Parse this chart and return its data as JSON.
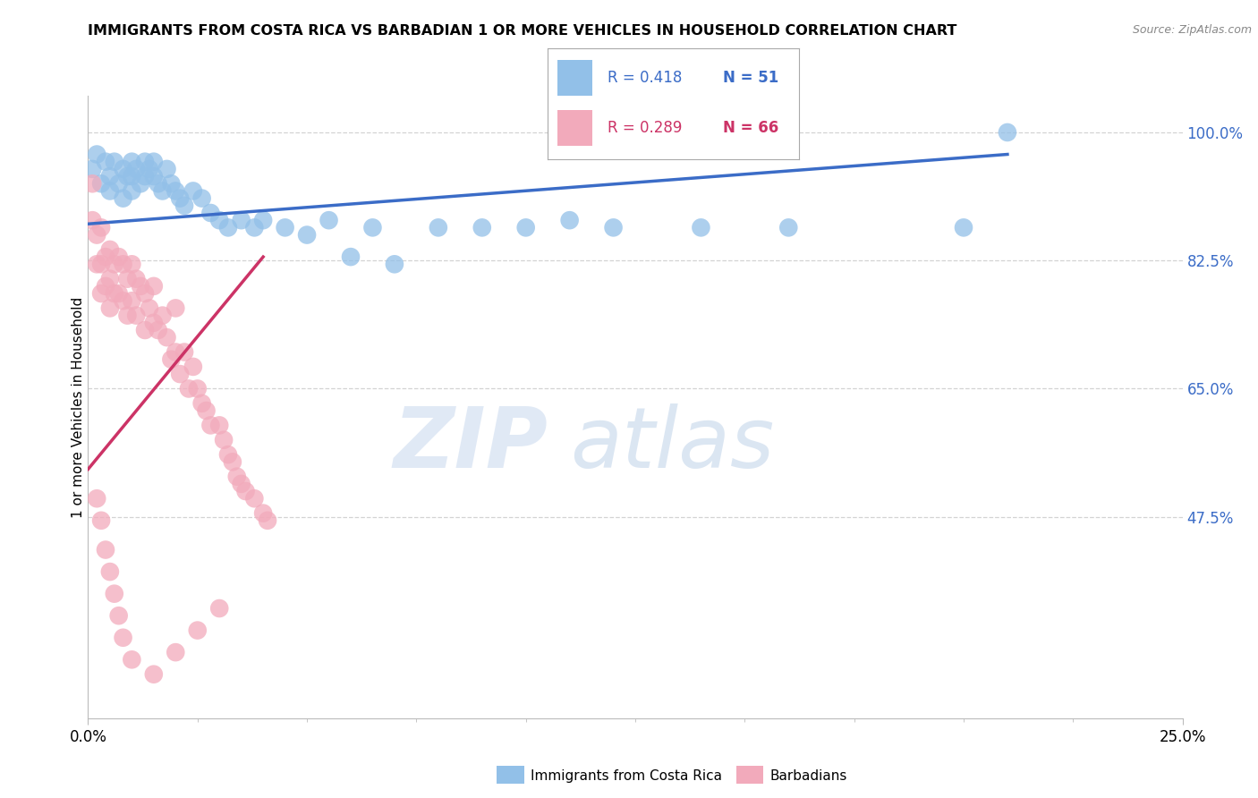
{
  "title": "IMMIGRANTS FROM COSTA RICA VS BARBADIAN 1 OR MORE VEHICLES IN HOUSEHOLD CORRELATION CHART",
  "source": "Source: ZipAtlas.com",
  "ylabel": "1 or more Vehicles in Household",
  "ytick_labels": [
    "100.0%",
    "82.5%",
    "65.0%",
    "47.5%"
  ],
  "ytick_values": [
    1.0,
    0.825,
    0.65,
    0.475
  ],
  "legend_r1": "R = 0.418",
  "legend_n1": "N = 51",
  "legend_r2": "R = 0.289",
  "legend_n2": "N = 66",
  "series1_label": "Immigrants from Costa Rica",
  "series2_label": "Barbadians",
  "color_blue": "#92C0E8",
  "color_pink": "#F2AABB",
  "trendline_blue": "#3B6CC7",
  "trendline_pink": "#CC3366",
  "background": "#FFFFFF",
  "grid_color": "#C8C8C8",
  "blue_x": [
    0.001,
    0.002,
    0.003,
    0.004,
    0.005,
    0.005,
    0.006,
    0.007,
    0.008,
    0.008,
    0.009,
    0.01,
    0.01,
    0.01,
    0.011,
    0.012,
    0.013,
    0.013,
    0.014,
    0.015,
    0.015,
    0.016,
    0.017,
    0.018,
    0.019,
    0.02,
    0.021,
    0.022,
    0.024,
    0.026,
    0.028,
    0.03,
    0.032,
    0.035,
    0.038,
    0.04,
    0.045,
    0.05,
    0.055,
    0.06,
    0.065,
    0.07,
    0.08,
    0.09,
    0.1,
    0.11,
    0.12,
    0.14,
    0.16,
    0.2,
    0.21
  ],
  "blue_y": [
    0.95,
    0.97,
    0.93,
    0.96,
    0.94,
    0.92,
    0.96,
    0.93,
    0.95,
    0.91,
    0.94,
    0.96,
    0.94,
    0.92,
    0.95,
    0.93,
    0.96,
    0.94,
    0.95,
    0.96,
    0.94,
    0.93,
    0.92,
    0.95,
    0.93,
    0.92,
    0.91,
    0.9,
    0.92,
    0.91,
    0.89,
    0.88,
    0.87,
    0.88,
    0.87,
    0.88,
    0.87,
    0.86,
    0.88,
    0.83,
    0.87,
    0.82,
    0.87,
    0.87,
    0.87,
    0.88,
    0.87,
    0.87,
    0.87,
    0.87,
    1.0
  ],
  "pink_x": [
    0.001,
    0.001,
    0.002,
    0.002,
    0.003,
    0.003,
    0.003,
    0.004,
    0.004,
    0.005,
    0.005,
    0.005,
    0.006,
    0.006,
    0.007,
    0.007,
    0.008,
    0.008,
    0.009,
    0.009,
    0.01,
    0.01,
    0.011,
    0.011,
    0.012,
    0.013,
    0.013,
    0.014,
    0.015,
    0.015,
    0.016,
    0.017,
    0.018,
    0.019,
    0.02,
    0.02,
    0.021,
    0.022,
    0.023,
    0.024,
    0.025,
    0.026,
    0.027,
    0.028,
    0.03,
    0.031,
    0.032,
    0.033,
    0.034,
    0.035,
    0.036,
    0.038,
    0.04,
    0.041,
    0.002,
    0.003,
    0.004,
    0.005,
    0.006,
    0.007,
    0.008,
    0.01,
    0.015,
    0.02,
    0.025,
    0.03
  ],
  "pink_y": [
    0.93,
    0.88,
    0.86,
    0.82,
    0.87,
    0.82,
    0.78,
    0.83,
    0.79,
    0.84,
    0.8,
    0.76,
    0.82,
    0.78,
    0.83,
    0.78,
    0.82,
    0.77,
    0.8,
    0.75,
    0.82,
    0.77,
    0.8,
    0.75,
    0.79,
    0.78,
    0.73,
    0.76,
    0.79,
    0.74,
    0.73,
    0.75,
    0.72,
    0.69,
    0.76,
    0.7,
    0.67,
    0.7,
    0.65,
    0.68,
    0.65,
    0.63,
    0.62,
    0.6,
    0.6,
    0.58,
    0.56,
    0.55,
    0.53,
    0.52,
    0.51,
    0.5,
    0.48,
    0.47,
    0.5,
    0.47,
    0.43,
    0.4,
    0.37,
    0.34,
    0.31,
    0.28,
    0.26,
    0.29,
    0.32,
    0.35
  ]
}
